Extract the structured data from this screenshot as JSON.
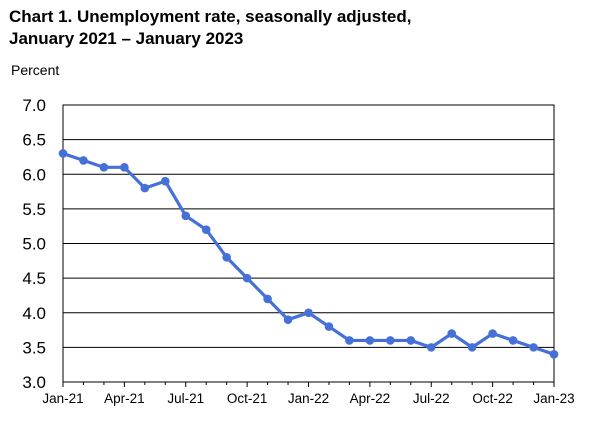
{
  "chart_data": {
    "type": "line",
    "title_line1": "Chart 1. Unemployment rate, seasonally adjusted,",
    "title_line2": "January 2021 – January 2023",
    "ylabel": "Percent",
    "ylim": [
      3.0,
      7.0
    ],
    "y_ticks": [
      "3.0",
      "3.5",
      "4.0",
      "4.5",
      "5.0",
      "5.5",
      "6.0",
      "6.5",
      "7.0"
    ],
    "x_tick_labels": [
      "Jan-21",
      "Apr-21",
      "Jul-21",
      "Oct-21",
      "Jan-22",
      "Apr-22",
      "Jul-22",
      "Oct-22",
      "Jan-23"
    ],
    "x": [
      "Jan-21",
      "Feb-21",
      "Mar-21",
      "Apr-21",
      "May-21",
      "Jun-21",
      "Jul-21",
      "Aug-21",
      "Sep-21",
      "Oct-21",
      "Nov-21",
      "Dec-21",
      "Jan-22",
      "Feb-22",
      "Mar-22",
      "Apr-22",
      "May-22",
      "Jun-22",
      "Jul-22",
      "Aug-22",
      "Sep-22",
      "Oct-22",
      "Nov-22",
      "Dec-22",
      "Jan-23"
    ],
    "series": [
      {
        "values": [
          6.3,
          6.2,
          6.1,
          6.1,
          5.8,
          5.9,
          5.4,
          5.2,
          4.8,
          4.5,
          4.2,
          3.9,
          4.0,
          3.8,
          3.6,
          3.6,
          3.6,
          3.6,
          3.5,
          3.7,
          3.5,
          3.7,
          3.6,
          3.5,
          3.4
        ],
        "color": "#4470d8"
      }
    ],
    "grid": true
  }
}
